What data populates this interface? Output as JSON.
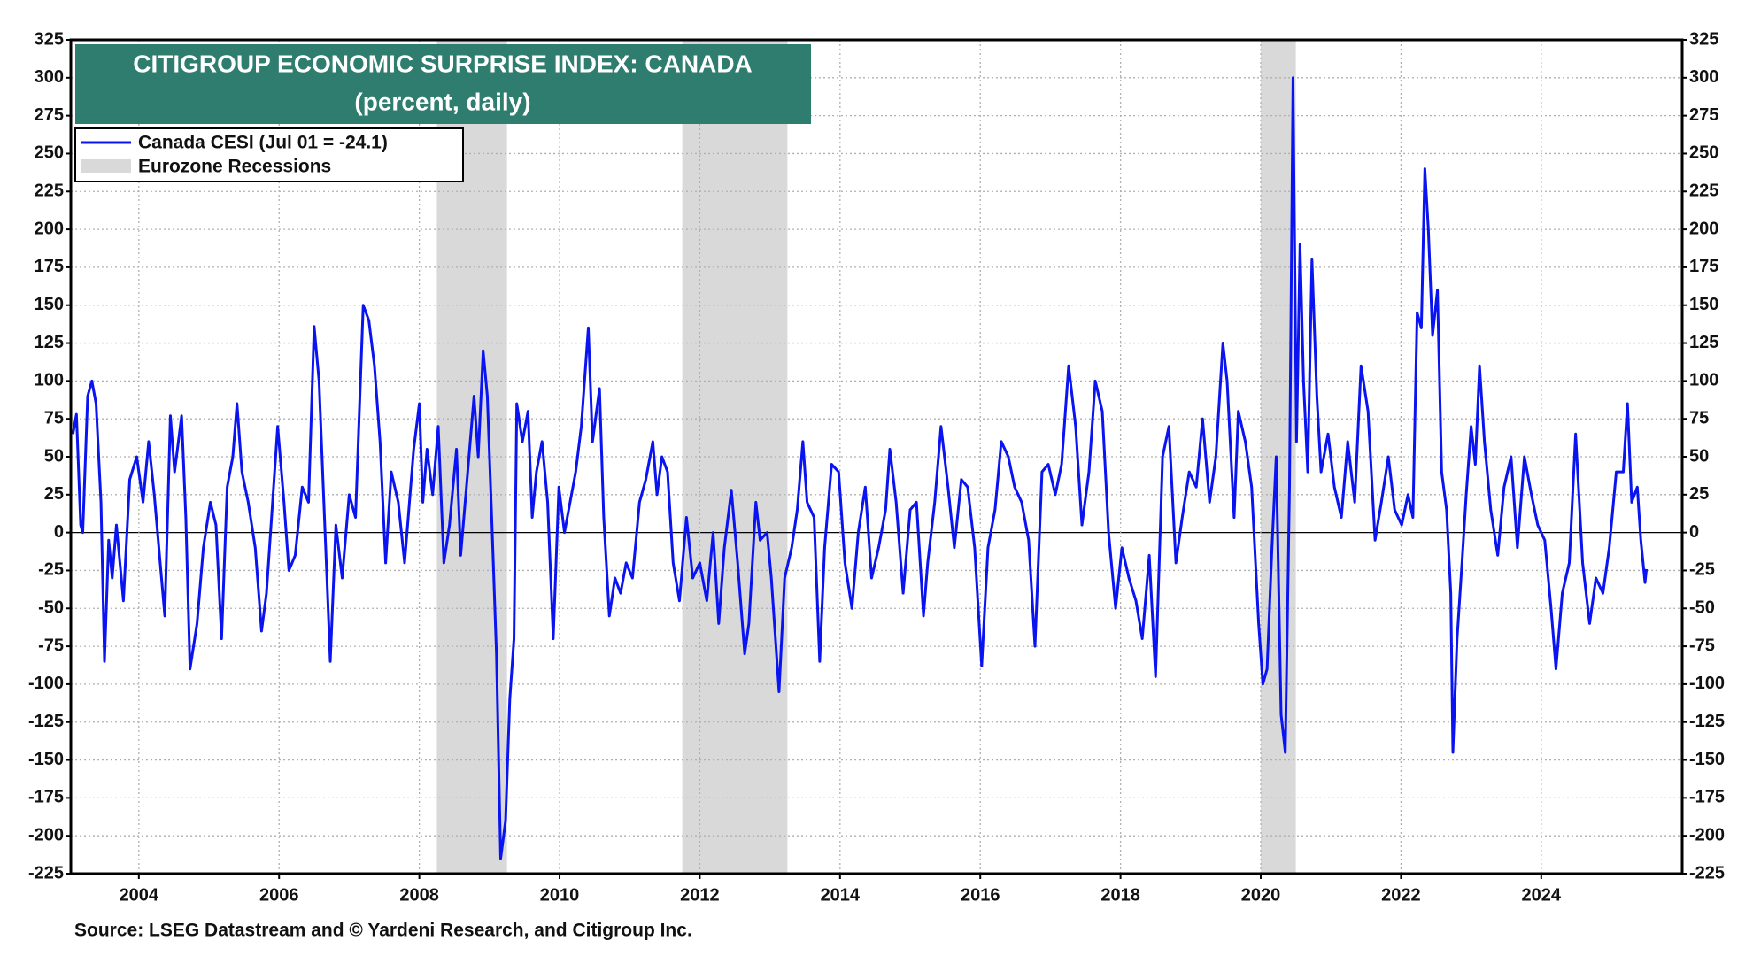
{
  "chart_data": {
    "type": "line",
    "title": "CITIGROUP ECONOMIC SURPRISE INDEX: CANADA",
    "subtitle": "(percent, daily)",
    "source": "Source: LSEG Datastream and © Yardeni Research, and Citigroup Inc.",
    "title_color": "#2e7d6f",
    "grid": true,
    "legend": "upper left",
    "xlim": [
      2003.03,
      2026.01
    ],
    "xticks": [
      2004,
      2006,
      2008,
      2010,
      2012,
      2014,
      2016,
      2018,
      2020,
      2022,
      2024
    ],
    "ylim": [
      -225,
      325
    ],
    "yticks": [
      -225,
      -200,
      -175,
      -150,
      -125,
      -100,
      -75,
      -50,
      -25,
      0,
      25,
      50,
      75,
      100,
      125,
      150,
      175,
      200,
      225,
      250,
      275,
      300,
      325
    ],
    "y2lim": [
      -225,
      325
    ],
    "y2ticks": [
      -225,
      -200,
      -175,
      -150,
      -125,
      -100,
      -75,
      -50,
      -25,
      0,
      25,
      50,
      75,
      100,
      125,
      150,
      175,
      200,
      225,
      250,
      275,
      300,
      325
    ],
    "shading": {
      "name": "Eurozone Recessions",
      "color": "#d9d9d9",
      "periods": [
        [
          2008.25,
          2009.25
        ],
        [
          2011.75,
          2013.25
        ],
        [
          2020.0,
          2020.5
        ]
      ]
    },
    "x": [
      2003.06,
      2003.11,
      2003.17,
      2003.2,
      2003.27,
      2003.33,
      2003.39,
      2003.46,
      2003.51,
      2003.57,
      2003.62,
      2003.68,
      2003.78,
      2003.87,
      2003.97,
      2004.06,
      2004.14,
      2004.22,
      2004.37,
      2004.45,
      2004.51,
      2004.61,
      2004.67,
      2004.73,
      2004.83,
      2004.92,
      2005.02,
      2005.1,
      2005.18,
      2005.26,
      2005.34,
      2005.4,
      2005.47,
      2005.56,
      2005.66,
      2005.75,
      2005.82,
      2005.98,
      2006.07,
      2006.14,
      2006.23,
      2006.33,
      2006.42,
      2006.5,
      2006.57,
      2006.63,
      2006.73,
      2006.81,
      2006.9,
      2007.0,
      2007.09,
      2007.2,
      2007.28,
      2007.36,
      2007.44,
      2007.52,
      2007.6,
      2007.7,
      2007.79,
      2007.92,
      2008.0,
      2008.05,
      2008.11,
      2008.19,
      2008.27,
      2008.35,
      2008.43,
      2008.53,
      2008.59,
      2008.69,
      2008.78,
      2008.84,
      2008.91,
      2008.97,
      2009.04,
      2009.1,
      2009.16,
      2009.23,
      2009.29,
      2009.35,
      2009.39,
      2009.47,
      2009.55,
      2009.61,
      2009.67,
      2009.75,
      2009.83,
      2009.91,
      2009.99,
      2010.07,
      2010.15,
      2010.23,
      2010.31,
      2010.41,
      2010.47,
      2010.57,
      2010.63,
      2010.71,
      2010.79,
      2010.87,
      2010.95,
      2011.04,
      2011.14,
      2011.23,
      2011.33,
      2011.39,
      2011.46,
      2011.54,
      2011.62,
      2011.71,
      2011.81,
      2011.9,
      2012.0,
      2012.1,
      2012.19,
      2012.27,
      2012.35,
      2012.45,
      2012.54,
      2012.64,
      2012.7,
      2012.8,
      2012.86,
      2012.96,
      2013.02,
      2013.13,
      2013.21,
      2013.31,
      2013.39,
      2013.47,
      2013.53,
      2013.63,
      2013.71,
      2013.78,
      2013.88,
      2013.98,
      2014.07,
      2014.17,
      2014.26,
      2014.36,
      2014.45,
      2014.55,
      2014.65,
      2014.71,
      2014.8,
      2014.9,
      2015.0,
      2015.09,
      2015.19,
      2015.25,
      2015.35,
      2015.44,
      2015.54,
      2015.63,
      2015.73,
      2015.82,
      2015.92,
      2016.02,
      2016.11,
      2016.21,
      2016.3,
      2016.4,
      2016.49,
      2016.59,
      2016.69,
      2016.78,
      2016.88,
      2016.97,
      2017.07,
      2017.16,
      2017.26,
      2017.36,
      2017.45,
      2017.55,
      2017.64,
      2017.74,
      2017.83,
      2017.93,
      2018.02,
      2018.12,
      2018.22,
      2018.31,
      2018.41,
      2018.5,
      2018.6,
      2018.69,
      2018.79,
      2018.88,
      2018.98,
      2019.08,
      2019.17,
      2019.27,
      2019.36,
      2019.46,
      2019.52,
      2019.62,
      2019.68,
      2019.78,
      2019.87,
      2019.97,
      2020.03,
      2020.09,
      2020.16,
      2020.22,
      2020.29,
      2020.35,
      2020.41,
      2020.46,
      2020.51,
      2020.56,
      2020.61,
      2020.67,
      2020.73,
      2020.8,
      2020.86,
      2020.96,
      2021.05,
      2021.15,
      2021.24,
      2021.34,
      2021.43,
      2021.53,
      2021.63,
      2021.72,
      2021.82,
      2021.91,
      2022.01,
      2022.1,
      2022.17,
      2022.23,
      2022.29,
      2022.34,
      2022.39,
      2022.45,
      2022.52,
      2022.58,
      2022.65,
      2022.71,
      2022.74,
      2022.8,
      2022.87,
      2022.93,
      2023.0,
      2023.06,
      2023.12,
      2023.19,
      2023.28,
      2023.38,
      2023.47,
      2023.57,
      2023.66,
      2023.76,
      2023.86,
      2023.95,
      2024.05,
      2024.14,
      2024.21,
      2024.3,
      2024.4,
      2024.49,
      2024.59,
      2024.69,
      2024.78,
      2024.88,
      2024.97,
      2025.07,
      2025.17,
      2025.23,
      2025.29,
      2025.37,
      2025.42,
      2025.48,
      2025.5
    ],
    "series": [
      {
        "name": "Canada CESI (Jul 01 = -24.1)",
        "color": "#0a14f0",
        "values": [
          65,
          78,
          5,
          0,
          90,
          100,
          85,
          20,
          -85,
          -5,
          -30,
          5,
          -45,
          35,
          50,
          20,
          60,
          25,
          -55,
          77,
          40,
          77,
          10,
          -90,
          -60,
          -10,
          20,
          5,
          -70,
          30,
          50,
          85,
          40,
          20,
          -10,
          -65,
          -40,
          70,
          20,
          -25,
          -15,
          30,
          20,
          136,
          100,
          30,
          -85,
          5,
          -30,
          25,
          10,
          150,
          140,
          110,
          60,
          -20,
          40,
          20,
          -20,
          55,
          85,
          20,
          55,
          25,
          70,
          -20,
          5,
          55,
          -15,
          40,
          90,
          50,
          120,
          90,
          0,
          -80,
          -215,
          -190,
          -110,
          -70,
          85,
          60,
          80,
          10,
          40,
          60,
          20,
          -70,
          30,
          0,
          20,
          40,
          70,
          135,
          60,
          95,
          10,
          -55,
          -30,
          -40,
          -20,
          -30,
          20,
          35,
          60,
          25,
          50,
          40,
          -20,
          -45,
          10,
          -30,
          -20,
          -45,
          0,
          -60,
          -10,
          28,
          -20,
          -80,
          -60,
          20,
          -5,
          0,
          -30,
          -105,
          -30,
          -10,
          15,
          60,
          20,
          10,
          -85,
          -10,
          45,
          40,
          -20,
          -50,
          0,
          30,
          -30,
          -10,
          15,
          55,
          20,
          -40,
          15,
          20,
          -55,
          -20,
          20,
          70,
          30,
          -10,
          35,
          30,
          -10,
          -88,
          -10,
          15,
          60,
          50,
          30,
          20,
          -5,
          -75,
          40,
          45,
          25,
          45,
          110,
          70,
          5,
          40,
          100,
          80,
          0,
          -50,
          -10,
          -30,
          -45,
          -70,
          -15,
          -95,
          50,
          70,
          -20,
          10,
          40,
          30,
          75,
          20,
          50,
          125,
          100,
          10,
          80,
          60,
          30,
          -60,
          -100,
          -90,
          -10,
          50,
          -120,
          -145,
          30,
          300,
          60,
          190,
          100,
          40,
          180,
          90,
          40,
          65,
          30,
          10,
          60,
          20,
          110,
          80,
          -5,
          20,
          50,
          15,
          5,
          25,
          10,
          145,
          135,
          240,
          200,
          130,
          160,
          40,
          15,
          -40,
          -145,
          -70,
          -20,
          25,
          70,
          45,
          110,
          60,
          15,
          -15,
          30,
          50,
          -10,
          50,
          25,
          5,
          -5,
          -50,
          -90,
          -40,
          -20,
          65,
          -20,
          -60,
          -30,
          -40,
          -10,
          40,
          40,
          85,
          20,
          30,
          -5,
          -33,
          -24.1
        ]
      }
    ]
  }
}
